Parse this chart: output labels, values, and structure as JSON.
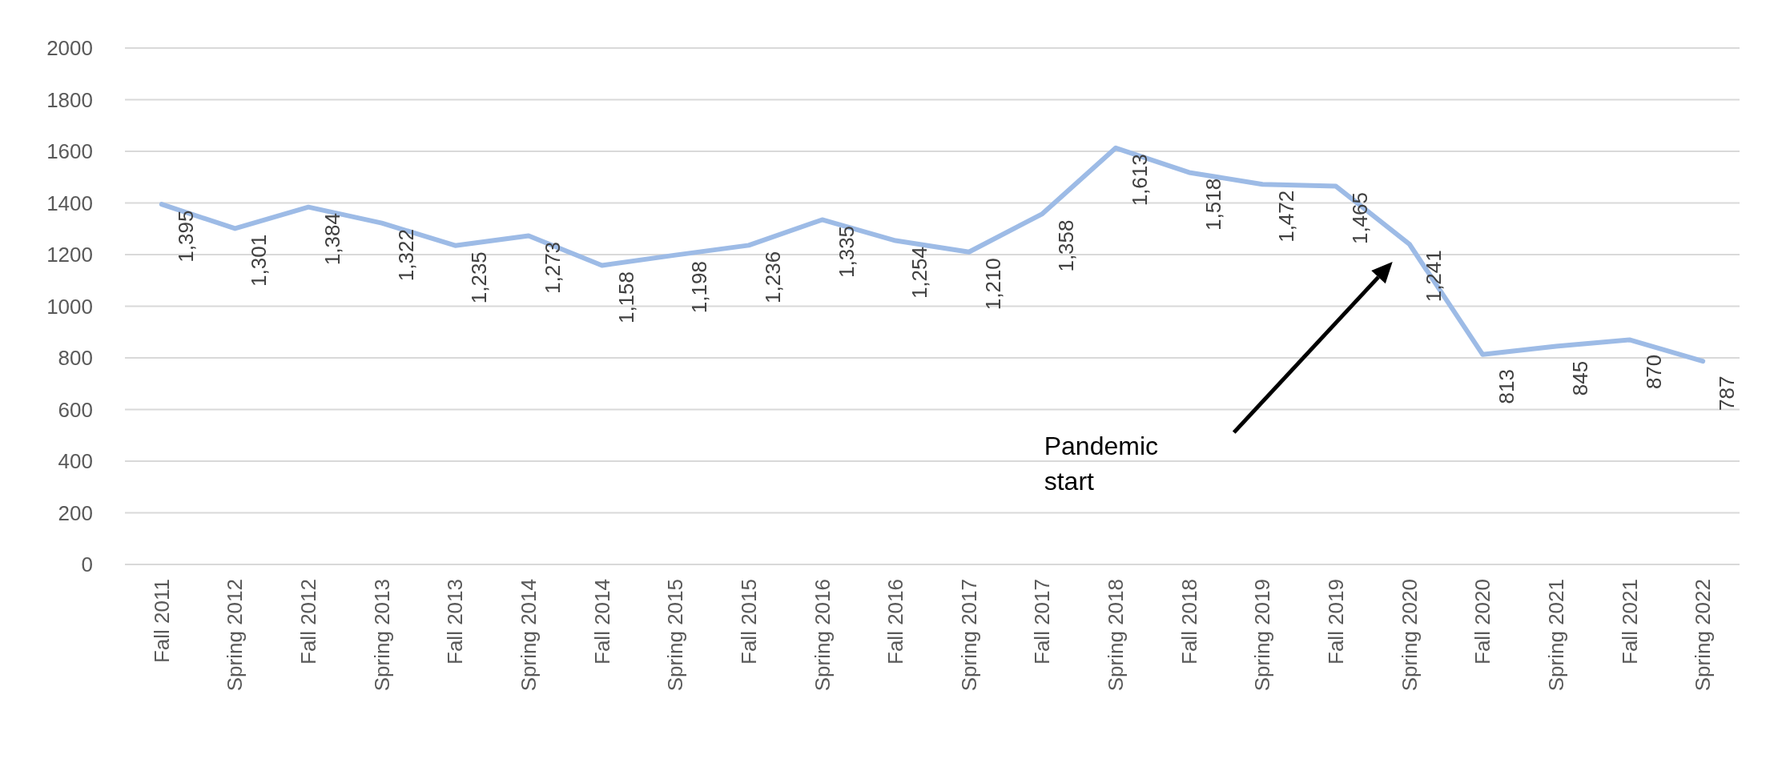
{
  "chart_data": {
    "type": "line",
    "categories": [
      "Fall 2011",
      "Spring 2012",
      "Fall 2012",
      "Spring 2013",
      "Fall 2013",
      "Spring 2014",
      "Fall 2014",
      "Spring 2015",
      "Fall 2015",
      "Spring 2016",
      "Fall 2016",
      "Spring 2017",
      "Fall 2017",
      "Spring 2018",
      "Fall 2018",
      "Spring 2019",
      "Fall 2019",
      "Spring 2020",
      "Fall 2020",
      "Spring 2021",
      "Fall 2021",
      "Spring 2022"
    ],
    "series": [
      {
        "color": "#9dbbe6",
        "values": [
          1395,
          1301,
          1384,
          1322,
          1235,
          1273,
          1158,
          1198,
          1236,
          1335,
          1254,
          1210,
          1358,
          1613,
          1518,
          1472,
          1465,
          1241,
          813,
          845,
          870,
          787
        ],
        "value_labels": [
          "1,395",
          "1,301",
          "1,384",
          "1,322",
          "1,235",
          "1,273",
          "1,158",
          "1,198",
          "1,236",
          "1,335",
          "1,254",
          "1,210",
          "1,358",
          "1,613",
          "1,518",
          "1,472",
          "1,465",
          "1,241",
          "813",
          "845",
          "870",
          "787"
        ]
      }
    ],
    "ylim": [
      0,
      2000
    ],
    "yticks": [
      0,
      200,
      400,
      600,
      800,
      1000,
      1200,
      1400,
      1600,
      1800,
      2000
    ],
    "grid": "y",
    "marker": "none",
    "line_style": "solid",
    "annotations": [
      "Pandemic start"
    ]
  }
}
